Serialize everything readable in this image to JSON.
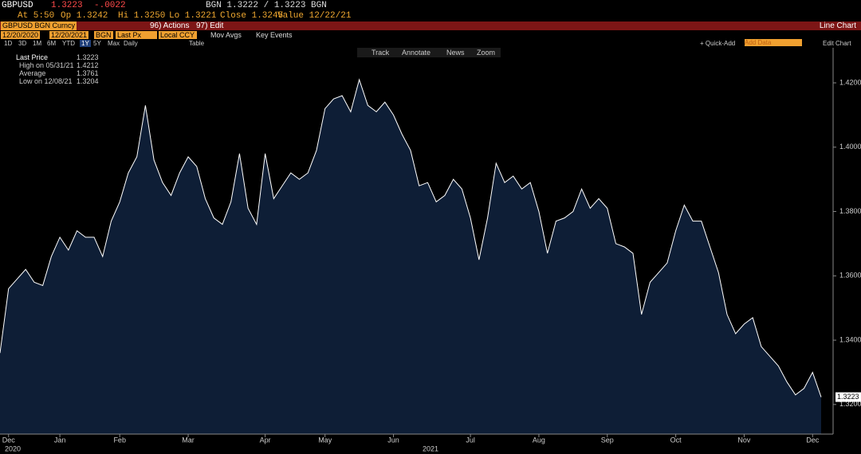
{
  "header": {
    "ticker": "GBPUSD",
    "last": "1.3223",
    "change": "-.0022",
    "quote": "BGN 1.3222 / 1.3223 BGN",
    "at": "At 5:50",
    "open": "Op 1.3242",
    "high": "Hi 1.3250",
    "low": "Lo 1.3221",
    "close": "Close 1.3245",
    "value": "Value 12/22/21"
  },
  "toolbar": {
    "security": "GBPUSD BGN Curncy",
    "actions": "96) Actions",
    "edit": "97) Edit",
    "view": "Line Chart"
  },
  "settings": {
    "start": "12/20/2020",
    "end": "12/20/2021",
    "source": "BGN",
    "field": "Last Px",
    "currency": "Local CCY",
    "mov_avgs": "Mov Avgs",
    "key_events": "Key Events"
  },
  "periods": [
    "1D",
    "3D",
    "1M",
    "6M",
    "YTD",
    "1Y",
    "5Y",
    "Max"
  ],
  "frequency": "Daily",
  "table": "Table",
  "quick_add": "+ Quick-Add",
  "add_data": "Add Data",
  "edit_chart": "Edit Chart",
  "chart_tools": [
    "Track",
    "Annotate",
    "News",
    "Zoom"
  ],
  "legend": [
    [
      "Last Price",
      "1.3223"
    ],
    [
      "High on 05/31/21",
      "1.4212"
    ],
    [
      "Average",
      "1.3761"
    ],
    [
      "Low on 12/08/21",
      "1.3204"
    ]
  ],
  "chart_data": {
    "type": "area",
    "color": "#0e1e36",
    "line_color": "#ffffff",
    "categories": [
      null,
      "Dec",
      null,
      null,
      null,
      null,
      null,
      "Jan",
      null,
      null,
      null,
      null,
      null,
      null,
      "Feb",
      null,
      null,
      null,
      null,
      null,
      null,
      null,
      "Mar",
      null,
      null,
      null,
      null,
      null,
      null,
      null,
      null,
      "Apr",
      null,
      null,
      null,
      null,
      null,
      null,
      "May",
      null,
      null,
      null,
      null,
      null,
      null,
      null,
      "Jun",
      null,
      null,
      null,
      null,
      null,
      null,
      null,
      null,
      "Jul",
      null,
      null,
      null,
      null,
      null,
      null,
      null,
      "Aug",
      null,
      null,
      null,
      null,
      null,
      null,
      null,
      "Sep",
      null,
      null,
      null,
      null,
      null,
      null,
      null,
      "Oct",
      null,
      null,
      null,
      null,
      null,
      null,
      null,
      "Nov",
      null,
      null,
      null,
      null,
      null,
      null,
      null,
      "Dec",
      null
    ],
    "values": [
      1.336,
      1.356,
      1.359,
      1.362,
      1.358,
      1.357,
      1.366,
      1.372,
      1.368,
      1.374,
      1.372,
      1.372,
      1.366,
      1.377,
      1.383,
      1.392,
      1.397,
      1.413,
      1.396,
      1.389,
      1.385,
      1.392,
      1.397,
      1.394,
      1.384,
      1.378,
      1.376,
      1.383,
      1.398,
      1.381,
      1.376,
      1.398,
      1.384,
      1.388,
      1.392,
      1.39,
      1.392,
      1.399,
      1.412,
      1.415,
      1.416,
      1.411,
      1.421,
      1.413,
      1.411,
      1.414,
      1.41,
      1.404,
      1.399,
      1.388,
      1.389,
      1.383,
      1.385,
      1.39,
      1.387,
      1.378,
      1.365,
      1.378,
      1.395,
      1.389,
      1.391,
      1.387,
      1.389,
      1.38,
      1.367,
      1.377,
      1.378,
      1.38,
      1.387,
      1.381,
      1.384,
      1.381,
      1.37,
      1.369,
      1.367,
      1.348,
      1.358,
      1.361,
      1.364,
      1.374,
      1.382,
      1.377,
      1.377,
      1.369,
      1.361,
      1.348,
      1.342,
      1.345,
      1.347,
      1.338,
      1.335,
      1.332,
      1.327,
      1.323,
      1.325,
      1.33,
      1.3223
    ],
    "years": [
      "2020",
      "2021"
    ],
    "ylim": [
      1.3108,
      1.4309
    ],
    "yticks": [
      {
        "value": 1.32,
        "label": "1.3200"
      },
      {
        "value": 1.34,
        "label": "1.3400"
      },
      {
        "value": 1.36,
        "label": "1.3600"
      },
      {
        "value": 1.38,
        "label": "1.3800"
      },
      {
        "value": 1.4,
        "label": "1.4000"
      },
      {
        "value": 1.42,
        "label": "1.4200"
      }
    ],
    "grid": false
  }
}
